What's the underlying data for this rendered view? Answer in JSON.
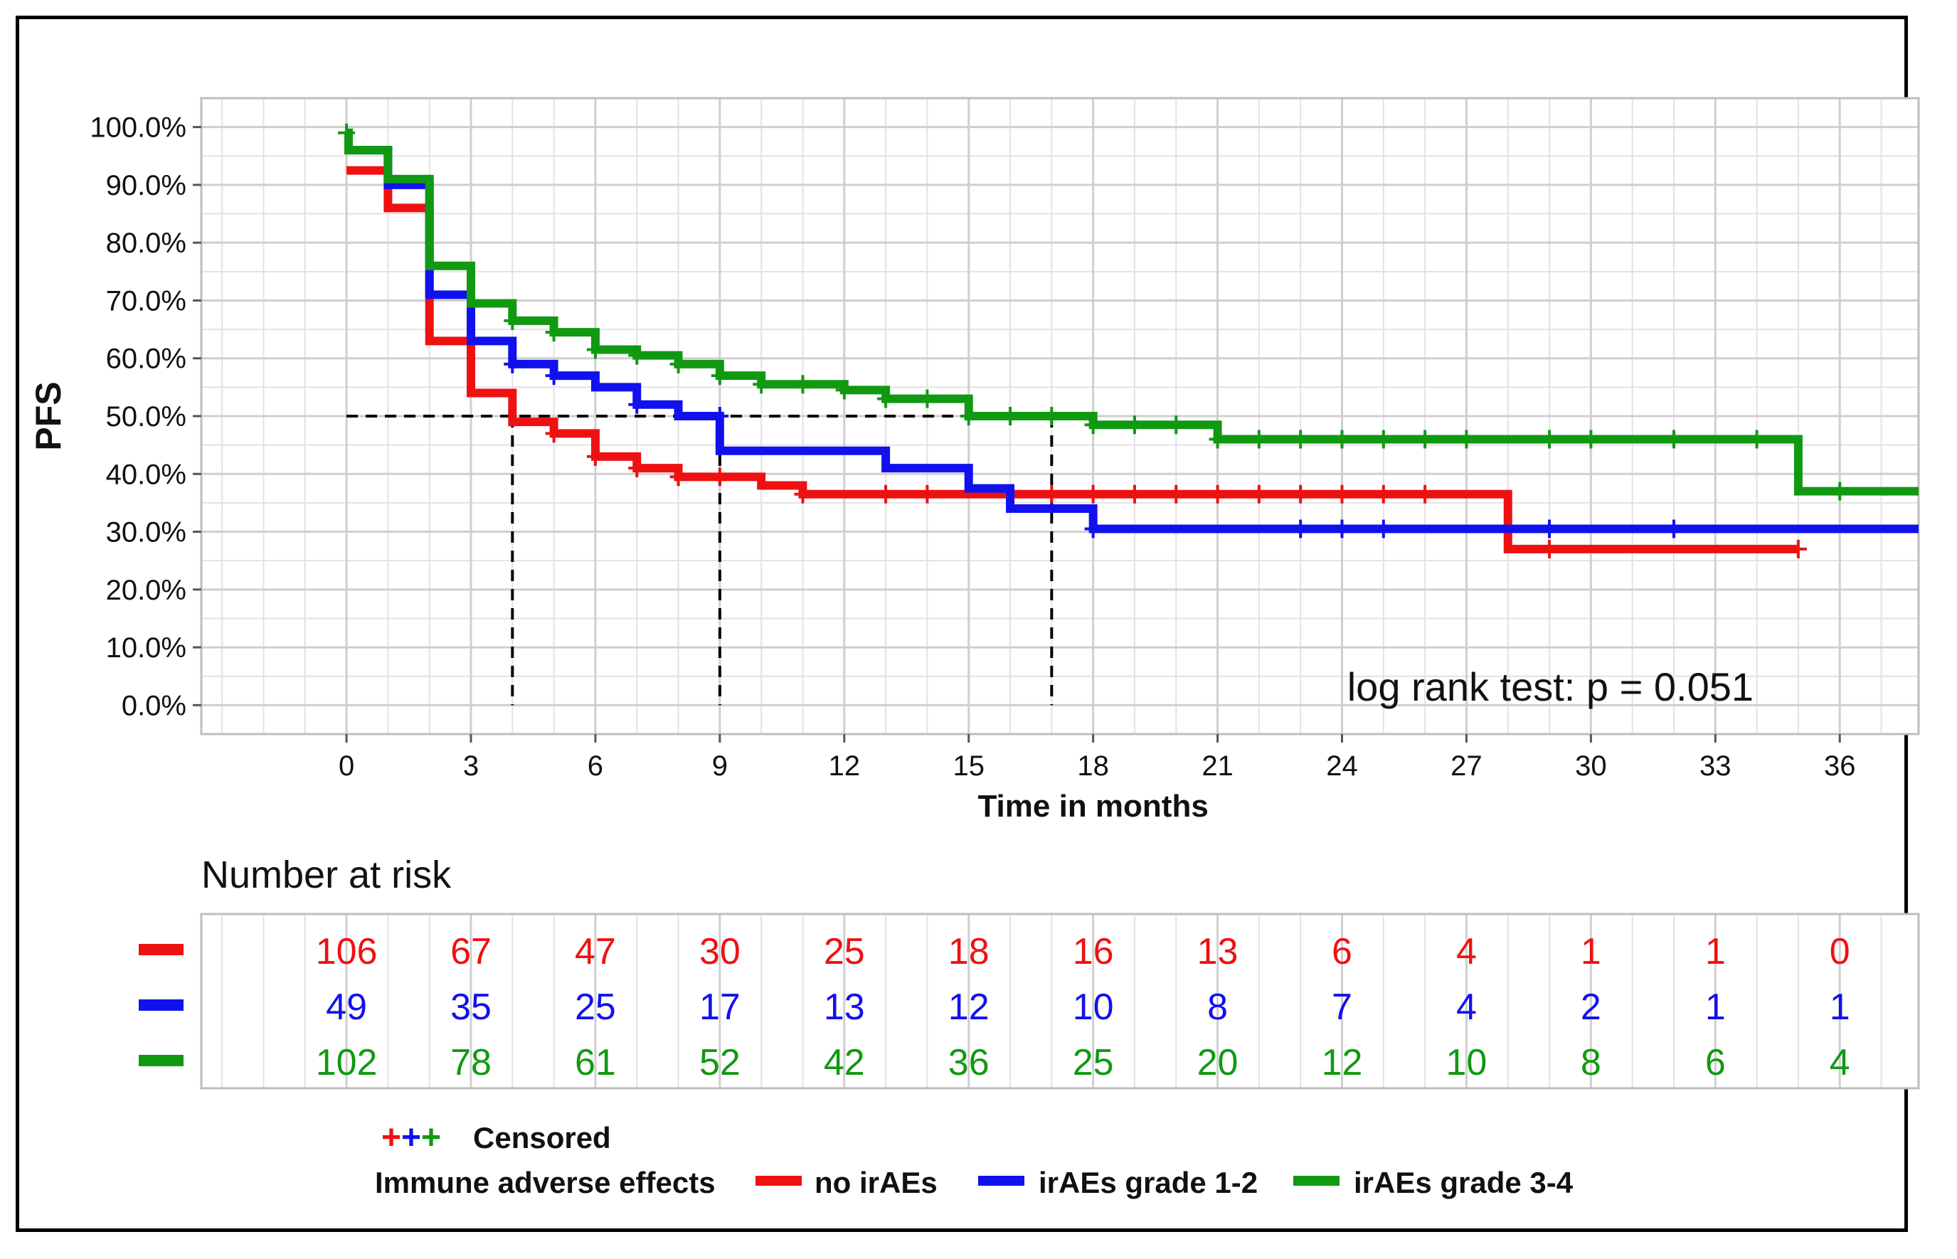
{
  "chart_data": {
    "type": "line",
    "subtype": "kaplan-meier step",
    "title": "",
    "xlabel": "Time in months",
    "ylabel": "PFS",
    "xlim": [
      -3.5,
      37.9
    ],
    "ylim": [
      -0.05,
      1.05
    ],
    "x_ticks": [
      0,
      3,
      6,
      9,
      12,
      15,
      18,
      21,
      24,
      27,
      30,
      33,
      36
    ],
    "y_ticks": [
      0,
      0.1,
      0.2,
      0.3,
      0.4,
      0.5,
      0.6,
      0.7,
      0.8,
      0.9,
      1.0
    ],
    "y_tick_labels": [
      "0.0%",
      "10.0%",
      "20.0%",
      "30.0%",
      "40.0%",
      "50.0%",
      "60.0%",
      "70.0%",
      "80.0%",
      "90.0%",
      "100.0%"
    ],
    "grid": true,
    "annotation": "log rank test: p = 0.051",
    "median_lines": {
      "horizontal_y": 0.5,
      "horizontal_x_range": [
        0,
        17
      ],
      "vertical_x": [
        4,
        9,
        17
      ]
    },
    "series": [
      {
        "name": "no irAEs",
        "color": "#ee1111",
        "steps": [
          [
            0,
            0.925
          ],
          [
            1,
            0.86
          ],
          [
            2,
            0.63
          ],
          [
            3,
            0.54
          ],
          [
            4,
            0.49
          ],
          [
            5,
            0.47
          ],
          [
            6,
            0.43
          ],
          [
            7,
            0.41
          ],
          [
            8,
            0.395
          ],
          [
            10,
            0.38
          ],
          [
            11,
            0.365
          ],
          [
            28,
            0.27
          ]
        ],
        "end_x": 35,
        "censored": [
          [
            5,
            0.47
          ],
          [
            6,
            0.43
          ],
          [
            7,
            0.41
          ],
          [
            8,
            0.395
          ],
          [
            9,
            0.395
          ],
          [
            11,
            0.365
          ],
          [
            13,
            0.365
          ],
          [
            14,
            0.365
          ],
          [
            16,
            0.365
          ],
          [
            17,
            0.365
          ],
          [
            18,
            0.365
          ],
          [
            19,
            0.365
          ],
          [
            20,
            0.365
          ],
          [
            21,
            0.365
          ],
          [
            22,
            0.365
          ],
          [
            23,
            0.365
          ],
          [
            24,
            0.365
          ],
          [
            25,
            0.365
          ],
          [
            26,
            0.365
          ],
          [
            29,
            0.27
          ],
          [
            35,
            0.27
          ]
        ]
      },
      {
        "name": "irAEs grade 1-2",
        "color": "#1111ee",
        "steps": [
          [
            0,
            0.96
          ],
          [
            1,
            0.9
          ],
          [
            2,
            0.71
          ],
          [
            3,
            0.63
          ],
          [
            4,
            0.59
          ],
          [
            5,
            0.57
          ],
          [
            6,
            0.55
          ],
          [
            7,
            0.52
          ],
          [
            8,
            0.5
          ],
          [
            9,
            0.44
          ],
          [
            13,
            0.41
          ],
          [
            15,
            0.375
          ],
          [
            16,
            0.34
          ],
          [
            18,
            0.305
          ]
        ],
        "end_x": 37.9,
        "censored": [
          [
            4,
            0.59
          ],
          [
            5,
            0.57
          ],
          [
            7,
            0.52
          ],
          [
            9,
            0.5
          ],
          [
            18,
            0.305
          ],
          [
            23,
            0.305
          ],
          [
            24,
            0.305
          ],
          [
            25,
            0.305
          ],
          [
            29,
            0.305
          ],
          [
            32,
            0.305
          ]
        ]
      },
      {
        "name": "irAEs grade 3-4",
        "color": "#119911",
        "steps": [
          [
            0,
            0.99
          ],
          [
            0.05,
            0.96
          ],
          [
            1,
            0.91
          ],
          [
            2,
            0.76
          ],
          [
            3,
            0.695
          ],
          [
            4,
            0.665
          ],
          [
            5,
            0.645
          ],
          [
            6,
            0.615
          ],
          [
            7,
            0.605
          ],
          [
            8,
            0.59
          ],
          [
            9,
            0.57
          ],
          [
            10,
            0.555
          ],
          [
            12,
            0.545
          ],
          [
            13,
            0.53
          ],
          [
            15,
            0.5
          ],
          [
            18,
            0.485
          ],
          [
            21,
            0.46
          ],
          [
            35,
            0.37
          ]
        ],
        "end_x": 37.9,
        "censored": [
          [
            0,
            0.99
          ],
          [
            4,
            0.665
          ],
          [
            5,
            0.645
          ],
          [
            6,
            0.615
          ],
          [
            7,
            0.605
          ],
          [
            8,
            0.59
          ],
          [
            9,
            0.57
          ],
          [
            10,
            0.555
          ],
          [
            11,
            0.555
          ],
          [
            12,
            0.545
          ],
          [
            13,
            0.53
          ],
          [
            14,
            0.53
          ],
          [
            15,
            0.5
          ],
          [
            16,
            0.5
          ],
          [
            17,
            0.5
          ],
          [
            18,
            0.485
          ],
          [
            19,
            0.485
          ],
          [
            20,
            0.485
          ],
          [
            21,
            0.46
          ],
          [
            22,
            0.46
          ],
          [
            23,
            0.46
          ],
          [
            24,
            0.46
          ],
          [
            25,
            0.46
          ],
          [
            26,
            0.46
          ],
          [
            27,
            0.46
          ],
          [
            29,
            0.46
          ],
          [
            30,
            0.46
          ],
          [
            32,
            0.46
          ],
          [
            34,
            0.46
          ],
          [
            36,
            0.37
          ]
        ]
      }
    ],
    "risk_table": {
      "title": "Number at risk",
      "time_points": [
        0,
        3,
        6,
        9,
        12,
        15,
        18,
        21,
        24,
        27,
        30,
        33,
        36
      ],
      "rows": [
        {
          "name": "no irAEs",
          "color": "#ee1111",
          "values": [
            "106",
            "67",
            "47",
            "30",
            "25",
            "18",
            "16",
            "13",
            "6",
            "4",
            "1",
            "1",
            "0"
          ]
        },
        {
          "name": "irAEs grade 1-2",
          "color": "#1111ee",
          "values": [
            "49",
            "35",
            "25",
            "17",
            "13",
            "12",
            "10",
            "8",
            "7",
            "4",
            "2",
            "1",
            "1"
          ]
        },
        {
          "name": "irAEs grade 3-4",
          "color": "#119911",
          "values": [
            "102",
            "78",
            "61",
            "52",
            "42",
            "36",
            "25",
            "20",
            "12",
            "10",
            "8",
            "6",
            "4"
          ]
        }
      ]
    },
    "legend": {
      "censored_symbol": "+",
      "censored_label": "Censored",
      "group_title": "Immune adverse effects",
      "entries": [
        "no irAEs",
        "irAEs grade 1-2",
        "irAEs grade 3-4"
      ]
    }
  }
}
